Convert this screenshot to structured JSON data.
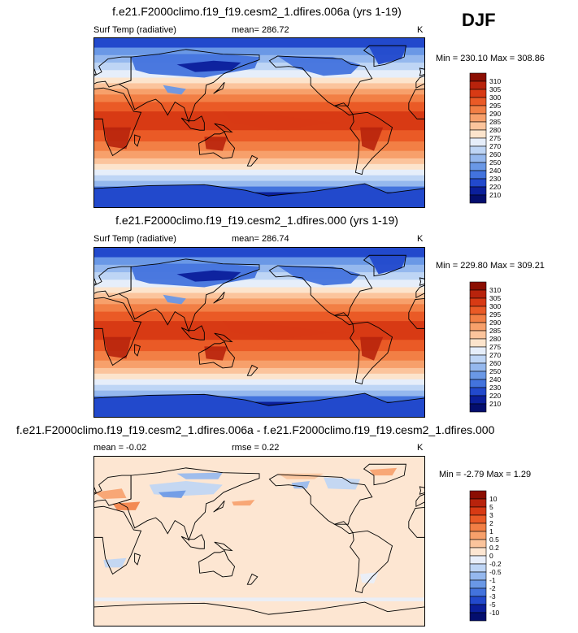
{
  "season": "DJF",
  "panels": [
    {
      "id": "test",
      "title": "f.e21.F2000climo.f19_f19.cesm2_1.dfires.006a (yrs 1-19)",
      "variable": "Surf Temp (radiative)",
      "stat": "mean= 286.72",
      "unit": "K",
      "minmax": "Min = 230.10 Max = 308.86",
      "colorbar": {
        "levels": [
          "310",
          "305",
          "300",
          "295",
          "290",
          "285",
          "280",
          "275",
          "270",
          "260",
          "250",
          "240",
          "230",
          "220",
          "210"
        ],
        "colors": [
          "#8b0e02",
          "#b8230c",
          "#d83a14",
          "#ea5a26",
          "#f27f45",
          "#f7a06b",
          "#fbc49c",
          "#fce4cc",
          "#e6eefa",
          "#bed5f5",
          "#95b8ee",
          "#6a98e6",
          "#4373dd",
          "#2249cc",
          "#0b1f9b",
          "#040e6e"
        ]
      }
    },
    {
      "id": "control",
      "title": "f.e21.F2000climo.f19_f19.cesm2_1.dfires.000 (yrs 1-19)",
      "variable": "Surf Temp (radiative)",
      "stat": "mean= 286.74",
      "unit": "K",
      "minmax": "Min = 229.80 Max = 309.21",
      "colorbar": {
        "levels": [
          "310",
          "305",
          "300",
          "295",
          "290",
          "285",
          "280",
          "275",
          "270",
          "260",
          "250",
          "240",
          "230",
          "220",
          "210"
        ],
        "colors": [
          "#8b0e02",
          "#b8230c",
          "#d83a14",
          "#ea5a26",
          "#f27f45",
          "#f7a06b",
          "#fbc49c",
          "#fce4cc",
          "#e6eefa",
          "#bed5f5",
          "#95b8ee",
          "#6a98e6",
          "#4373dd",
          "#2249cc",
          "#0b1f9b",
          "#040e6e"
        ]
      }
    },
    {
      "id": "difference",
      "title": "f.e21.F2000climo.f19_f19.cesm2_1.dfires.006a - f.e21.F2000climo.f19_f19.cesm2_1.dfires.000",
      "mean": "mean =  -0.02",
      "rmse": "rmse =  0.22",
      "unit": "K",
      "minmax": "Min =  -2.79 Max =  1.29",
      "colorbar": {
        "levels": [
          "10",
          "5",
          "3",
          "2",
          "1",
          "0.5",
          "0.2",
          "0",
          "-0.2",
          "-0.5",
          "-1",
          "-2",
          "-3",
          "-5",
          "-10"
        ],
        "colors": [
          "#8b0e02",
          "#b8230c",
          "#d83a14",
          "#ea5a26",
          "#f27f45",
          "#f7a06b",
          "#fbc49c",
          "#fde6d2",
          "#e8eefa",
          "#bed5f5",
          "#95b8ee",
          "#6a98e6",
          "#4373dd",
          "#2249cc",
          "#0b1f9b",
          "#040e6e"
        ]
      }
    }
  ],
  "chart_data": [
    {
      "type": "heatmap",
      "title": "f.e21.F2000climo.f19_f19.cesm2_1.dfires.006a (yrs 1-19)",
      "subtitle": "Surf Temp (radiative)",
      "mean": 286.72,
      "min": 230.1,
      "max": 308.86,
      "unit": "K",
      "contour_levels": [
        210,
        220,
        230,
        240,
        250,
        260,
        270,
        275,
        280,
        285,
        290,
        295,
        300,
        305,
        310
      ]
    },
    {
      "type": "heatmap",
      "title": "f.e21.F2000climo.f19_f19.cesm2_1.dfires.000 (yrs 1-19)",
      "subtitle": "Surf Temp (radiative)",
      "mean": 286.74,
      "min": 229.8,
      "max": 309.21,
      "unit": "K",
      "contour_levels": [
        210,
        220,
        230,
        240,
        250,
        260,
        270,
        275,
        280,
        285,
        290,
        295,
        300,
        305,
        310
      ]
    },
    {
      "type": "heatmap",
      "title": "f.e21.F2000climo.f19_f19.cesm2_1.dfires.006a - f.e21.F2000climo.f19_f19.cesm2_1.dfires.000",
      "mean": -0.02,
      "rmse": 0.22,
      "min": -2.79,
      "max": 1.29,
      "unit": "K",
      "contour_levels": [
        -10,
        -5,
        -3,
        -2,
        -1,
        -0.5,
        -0.2,
        0,
        0.2,
        0.5,
        1,
        2,
        3,
        5,
        10
      ]
    }
  ]
}
